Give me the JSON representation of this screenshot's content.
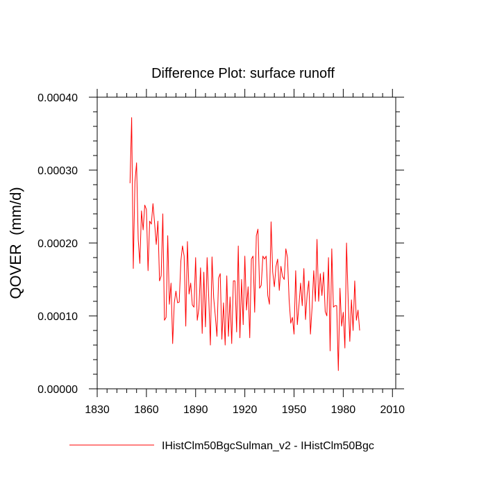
{
  "chart_data": {
    "type": "line",
    "title": "Difference Plot: surface runoff",
    "xlabel": "",
    "ylabel": "QOVER  (mm/d)",
    "xlim": [
      1830,
      2012
    ],
    "ylim": [
      0.0,
      0.0004
    ],
    "x_ticks": [
      1830,
      1860,
      1890,
      1920,
      1950,
      1980,
      2010
    ],
    "y_ticks": [
      0.0,
      0.0001,
      0.0002,
      0.0003,
      0.0004
    ],
    "y_tick_labels": [
      "0.00000",
      "0.00010",
      "0.00020",
      "0.00030",
      "0.00040"
    ],
    "x_tick_labels": [
      "1830",
      "1860",
      "1890",
      "1920",
      "1950",
      "1980",
      "2010"
    ],
    "legend_position": "bottom",
    "series": [
      {
        "name": "IHistClm50BgcSulman_v2 - IHistClm50Bgc",
        "color": "#ff0000",
        "x_start": 1850,
        "x_step": 1,
        "values": [
          0.000282,
          0.000372,
          0.000165,
          0.000284,
          0.00031,
          0.000205,
          0.000172,
          0.000244,
          0.000218,
          0.000252,
          0.000246,
          0.000162,
          0.00023,
          0.000226,
          0.000254,
          0.000227,
          0.000198,
          0.00023,
          0.000148,
          0.000155,
          0.00024,
          9.4e-05,
          9.8e-05,
          0.00021,
          0.000116,
          0.000145,
          6.2e-05,
          0.000118,
          0.000134,
          0.000118,
          0.000119,
          0.000175,
          0.000196,
          0.000182,
          8.6e-05,
          0.000202,
          0.00013,
          0.000145,
          0.000115,
          0.000112,
          0.00018,
          9.4e-05,
          0.00011,
          0.000166,
          7.6e-05,
          0.00016,
          8.5e-05,
          0.00018,
          0.000125,
          6e-05,
          0.000181,
          0.000125,
          0.0001,
          7.2e-05,
          0.000152,
          0.000158,
          6.8e-05,
          0.000118,
          6e-05,
          0.000155,
          7.2e-05,
          0.000126,
          6.2e-05,
          0.000148,
          0.000148,
          7.8e-05,
          0.000196,
          7e-05,
          0.00015,
          8.8e-05,
          0.000182,
          0.000108,
          0.00014,
          7e-05,
          0.000178,
          0.000182,
          0.000105,
          0.00021,
          0.000219,
          0.000138,
          0.000142,
          0.000182,
          0.000178,
          0.000182,
          0.000128,
          0.000116,
          0.000229,
          0.00016,
          0.00014,
          0.000168,
          0.000178,
          0.000135,
          0.000168,
          0.000154,
          0.00015,
          0.000192,
          0.00018,
          0.000122,
          9e-05,
          9.8e-05,
          7.5e-05,
          0.000162,
          8.8e-05,
          0.000115,
          0.000145,
          0.000114,
          0.000165,
          9.5e-05,
          0.00013,
          0.000148,
          7.5e-05,
          0.000112,
          0.000162,
          0.00012,
          0.000205,
          0.00012,
          0.000158,
          0.000128,
          0.00016,
          0.000106,
          0.0001,
          0.00018,
          5.2e-05,
          0.000192,
          0.000112,
          0.000114,
          0.000114,
          2.5e-05,
          0.000138,
          8.6e-05,
          0.000105,
          5.6e-05,
          0.0002,
          0.000122,
          6.5e-05,
          0.000122,
          8e-05,
          0.000148,
          9.4e-05,
          0.000108,
          8e-05
        ]
      }
    ]
  }
}
